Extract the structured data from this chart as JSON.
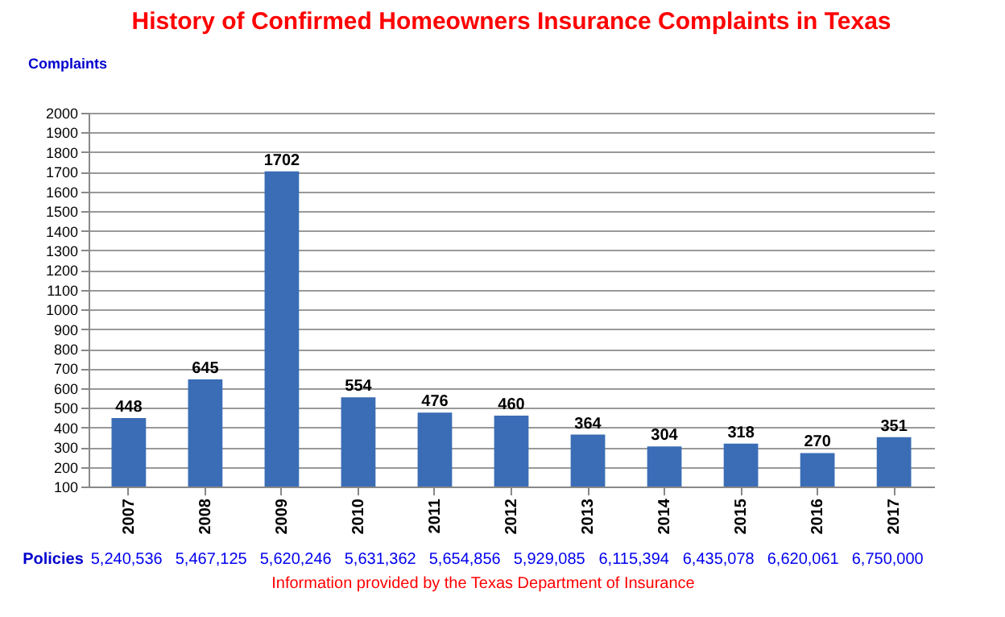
{
  "chart_data": {
    "type": "bar",
    "title": "History of Confirmed Homeowners Insurance Complaints in Texas",
    "ylabel": "Complaints",
    "categories": [
      "2007",
      "2008",
      "2009",
      "2010",
      "2011",
      "2012",
      "2013",
      "2014",
      "2015",
      "2016",
      "2017"
    ],
    "values": [
      448,
      645,
      1702,
      554,
      476,
      460,
      364,
      304,
      318,
      270,
      351
    ],
    "color": "#3a6db5",
    "ylim": [
      100,
      2000
    ],
    "yticks": [
      100,
      200,
      300,
      400,
      500,
      600,
      700,
      800,
      900,
      1000,
      1100,
      1200,
      1300,
      1400,
      1500,
      1600,
      1700,
      1800,
      1900,
      2000
    ],
    "grid": "y",
    "data_labels": true,
    "annotations": [
      "Policies",
      "5,240,536",
      "5,467,125",
      "5,620,246",
      "5,631,362",
      "5,654,856",
      "5,929,085",
      "6,115,394",
      "6,435,078",
      "6,620,061",
      "6,750,000",
      "Information provided by the Texas Department of Insurance"
    ]
  }
}
